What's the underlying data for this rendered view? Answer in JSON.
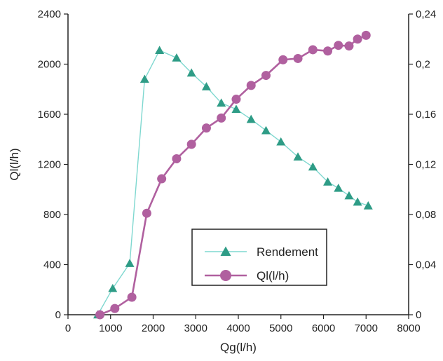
{
  "chart_data": {
    "type": "line",
    "xlabel": "Qg(l/h)",
    "ylabel": "Ql(l/h)",
    "x_ticks": [
      "0",
      "1000",
      "2000",
      "3000",
      "4000",
      "5000",
      "6000",
      "7000",
      "8000"
    ],
    "y_left_ticks": [
      "0",
      "400",
      "800",
      "1200",
      "1600",
      "2000",
      "2400"
    ],
    "y_right_ticks": [
      "0",
      "0,04",
      "0,08",
      "0,12",
      "0,16",
      "0,2",
      "0,24"
    ],
    "xlim": [
      0,
      8000
    ],
    "ylim_left": [
      0,
      2400
    ],
    "ylim_right": [
      0,
      0.24
    ],
    "grid": false,
    "legend_position": "bottom-right",
    "series": [
      {
        "name": "Rendement",
        "axis": "right",
        "marker": "triangle",
        "color": "#2e9c86",
        "line_color": "#7fd8d0",
        "x": [
          700,
          1050,
          1450,
          1800,
          2150,
          2550,
          2900,
          3250,
          3600,
          3950,
          4300,
          4650,
          5000,
          5400,
          5750,
          6100,
          6350,
          6600,
          6800,
          7050
        ],
        "y": [
          0,
          0.021,
          0.041,
          0.188,
          0.211,
          0.205,
          0.193,
          0.182,
          0.169,
          0.164,
          0.156,
          0.147,
          0.138,
          0.126,
          0.118,
          0.106,
          0.101,
          0.095,
          0.09,
          0.087
        ]
      },
      {
        "name": "Ql(l/h)",
        "axis": "left",
        "marker": "circle",
        "color": "#b0609f",
        "line_color": "#b0609f",
        "x": [
          750,
          1100,
          1500,
          1850,
          2200,
          2550,
          2900,
          3250,
          3600,
          3950,
          4300,
          4650,
          5050,
          5400,
          5750,
          6100,
          6350,
          6600,
          6800,
          7000
        ],
        "y": [
          0,
          50,
          140,
          810,
          1085,
          1245,
          1360,
          1490,
          1570,
          1720,
          1830,
          1910,
          2035,
          2045,
          2115,
          2105,
          2150,
          2145,
          2200,
          2230
        ]
      }
    ]
  }
}
